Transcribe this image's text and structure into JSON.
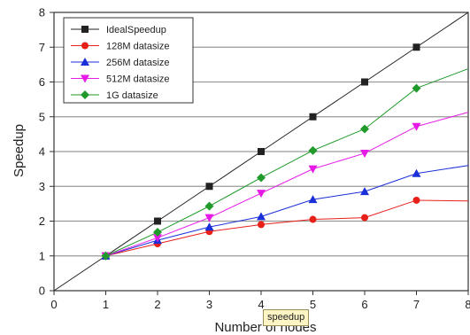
{
  "chart_data": {
    "type": "line",
    "xlabel": "Number of nodes",
    "ylabel": "Speedup",
    "xlim": [
      0,
      8
    ],
    "ylim": [
      0,
      8
    ],
    "xticks": [
      0,
      1,
      2,
      3,
      4,
      5,
      6,
      7,
      8
    ],
    "yticks": [
      0,
      1,
      2,
      3,
      4,
      5,
      6,
      7,
      8
    ],
    "grid": "horizontal",
    "legend_position": "top-left",
    "series": [
      {
        "name": "IdealSpeedup",
        "color": "#222222",
        "marker": "square",
        "x": [
          0,
          1,
          2,
          3,
          4,
          5,
          6,
          7,
          8
        ],
        "y": [
          0,
          1,
          2,
          3,
          4,
          5,
          6,
          7,
          8
        ]
      },
      {
        "name": "128M datasize",
        "color": "#e8201a",
        "marker": "circle",
        "x": [
          1,
          2,
          3,
          4,
          5,
          6,
          7,
          8
        ],
        "y": [
          1,
          1.35,
          1.7,
          1.9,
          2.05,
          2.1,
          2.6,
          2.58
        ]
      },
      {
        "name": "256M datasize",
        "color": "#1a2fd8",
        "marker": "triangle-up",
        "x": [
          1,
          2,
          3,
          4,
          5,
          6,
          7,
          8
        ],
        "y": [
          1,
          1.45,
          1.83,
          2.13,
          2.62,
          2.85,
          3.37,
          3.6
        ]
      },
      {
        "name": "512M datasize",
        "color": "#e61ae6",
        "marker": "triangle-down",
        "x": [
          1,
          2,
          3,
          4,
          5,
          6,
          7,
          8
        ],
        "y": [
          1,
          1.52,
          2.1,
          2.8,
          3.5,
          3.95,
          4.72,
          5.13
        ]
      },
      {
        "name": "1G datasize",
        "color": "#1f9a2a",
        "marker": "diamond",
        "x": [
          1,
          2,
          3,
          4,
          5,
          6,
          7,
          8
        ],
        "y": [
          1,
          1.68,
          2.43,
          3.25,
          4.03,
          4.65,
          5.82,
          6.38
        ]
      }
    ]
  },
  "tooltip": {
    "text": "speedup"
  }
}
